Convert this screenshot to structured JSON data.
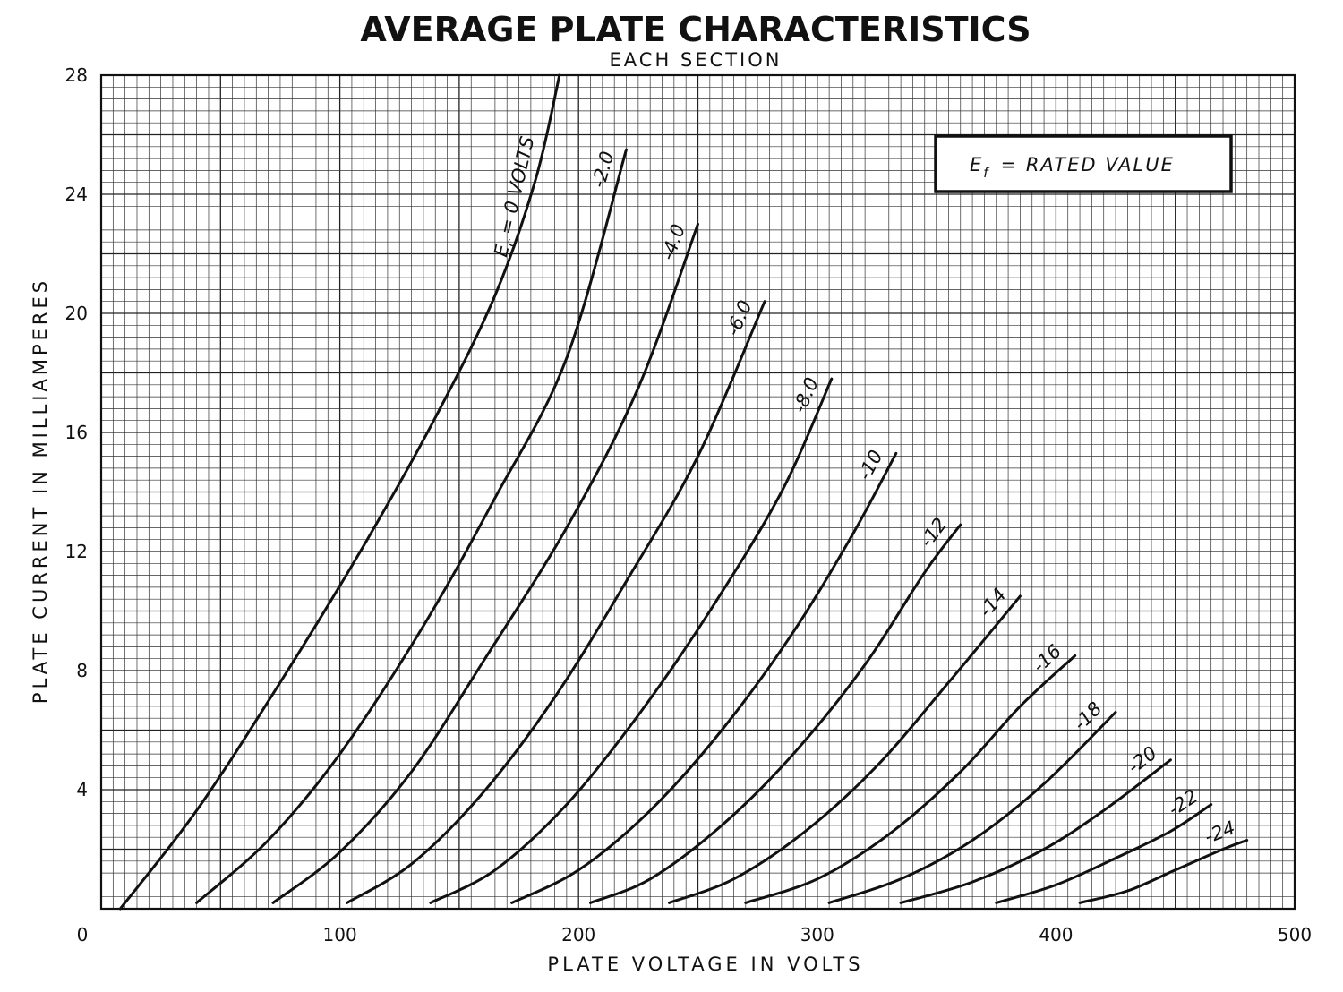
{
  "chart_data": {
    "type": "line",
    "title": "AVERAGE PLATE CHARACTERISTICS",
    "subtitle": "EACH SECTION",
    "xlabel": "PLATE VOLTAGE IN VOLTS",
    "ylabel": "PLATE CURRENT IN MILLIAMPERES",
    "xlim": [
      0,
      500
    ],
    "ylim": [
      0,
      28
    ],
    "x_ticks": [
      "0",
      "100",
      "200",
      "300",
      "400",
      "500"
    ],
    "y_ticks": [
      "0",
      "4",
      "8",
      "12",
      "16",
      "20",
      "24",
      "28"
    ],
    "grid": true,
    "legend_box": {
      "symbol": "E",
      "subscript": "f",
      "text": "= RATED VALUE",
      "placement": "top-right"
    },
    "series": [
      {
        "label_prefix": "E",
        "label_sub": "c",
        "label": "= 0 VOLTS",
        "points": [
          [
            8,
            0
          ],
          [
            40,
            3.3
          ],
          [
            75,
            7.6
          ],
          [
            110,
            12.2
          ],
          [
            140,
            16.5
          ],
          [
            165,
            20.6
          ],
          [
            182,
            24.5
          ],
          [
            192,
            28
          ]
        ]
      },
      {
        "label": "-2.0",
        "points": [
          [
            40,
            0.2
          ],
          [
            70,
            2.3
          ],
          [
            100,
            5.2
          ],
          [
            135,
            9.5
          ],
          [
            165,
            13.8
          ],
          [
            195,
            18.5
          ],
          [
            220,
            25.5
          ]
        ]
      },
      {
        "label": "-4.0",
        "points": [
          [
            72,
            0.2
          ],
          [
            100,
            1.9
          ],
          [
            130,
            4.6
          ],
          [
            160,
            8.3
          ],
          [
            195,
            12.8
          ],
          [
            225,
            17.5
          ],
          [
            250,
            23
          ]
        ]
      },
      {
        "label": "-6.0",
        "points": [
          [
            103,
            0.2
          ],
          [
            130,
            1.5
          ],
          [
            160,
            3.9
          ],
          [
            190,
            7.1
          ],
          [
            220,
            11
          ],
          [
            250,
            15.2
          ],
          [
            278,
            20.4
          ]
        ]
      },
      {
        "label": "-8.0",
        "points": [
          [
            138,
            0.2
          ],
          [
            165,
            1.3
          ],
          [
            195,
            3.5
          ],
          [
            225,
            6.5
          ],
          [
            255,
            10
          ],
          [
            285,
            14
          ],
          [
            306,
            17.8
          ]
        ]
      },
      {
        "label": "-10",
        "points": [
          [
            172,
            0.2
          ],
          [
            200,
            1.3
          ],
          [
            230,
            3.3
          ],
          [
            260,
            6
          ],
          [
            290,
            9.3
          ],
          [
            315,
            12.6
          ],
          [
            333,
            15.3
          ]
        ]
      },
      {
        "label": "-12",
        "points": [
          [
            205,
            0.2
          ],
          [
            230,
            1
          ],
          [
            260,
            2.8
          ],
          [
            290,
            5.2
          ],
          [
            320,
            8.2
          ],
          [
            345,
            11.3
          ],
          [
            360,
            12.9
          ]
        ]
      },
      {
        "label": "-14",
        "points": [
          [
            238,
            0.2
          ],
          [
            265,
            1
          ],
          [
            295,
            2.6
          ],
          [
            325,
            4.8
          ],
          [
            355,
            7.6
          ],
          [
            385,
            10.5
          ]
        ]
      },
      {
        "label": "-16",
        "points": [
          [
            270,
            0.2
          ],
          [
            300,
            1
          ],
          [
            330,
            2.5
          ],
          [
            360,
            4.6
          ],
          [
            385,
            6.8
          ],
          [
            408,
            8.5
          ]
        ]
      },
      {
        "label": "-18",
        "points": [
          [
            305,
            0.2
          ],
          [
            335,
            1
          ],
          [
            365,
            2.3
          ],
          [
            395,
            4.2
          ],
          [
            425,
            6.6
          ]
        ]
      },
      {
        "label": "-20",
        "points": [
          [
            335,
            0.2
          ],
          [
            365,
            0.9
          ],
          [
            395,
            2
          ],
          [
            420,
            3.3
          ],
          [
            448,
            5
          ]
        ]
      },
      {
        "label": "-22",
        "points": [
          [
            375,
            0.2
          ],
          [
            400,
            0.8
          ],
          [
            425,
            1.7
          ],
          [
            448,
            2.6
          ],
          [
            465,
            3.5
          ]
        ]
      },
      {
        "label": "-24",
        "points": [
          [
            410,
            0.2
          ],
          [
            430,
            0.6
          ],
          [
            450,
            1.3
          ],
          [
            470,
            2
          ],
          [
            480,
            2.3
          ]
        ]
      }
    ]
  }
}
